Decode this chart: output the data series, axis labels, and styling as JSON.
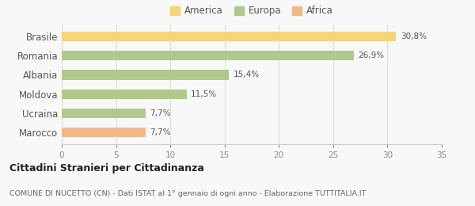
{
  "categories": [
    "Brasile",
    "Romania",
    "Albania",
    "Moldova",
    "Ucraina",
    "Marocco"
  ],
  "values": [
    30.8,
    26.9,
    15.4,
    11.5,
    7.7,
    7.7
  ],
  "labels": [
    "30,8%",
    "26,9%",
    "15,4%",
    "11,5%",
    "7,7%",
    "7,7%"
  ],
  "colors": [
    "#f5d57a",
    "#afc98a",
    "#afc98a",
    "#afc98a",
    "#afc98a",
    "#f0b98a"
  ],
  "legend": [
    {
      "label": "America",
      "color": "#f5d57a"
    },
    {
      "label": "Europa",
      "color": "#afc98a"
    },
    {
      "label": "Africa",
      "color": "#f0b98a"
    }
  ],
  "xlim": [
    0,
    35
  ],
  "xticks": [
    0,
    5,
    10,
    15,
    20,
    25,
    30,
    35
  ],
  "title": "Cittadini Stranieri per Cittadinanza",
  "subtitle": "COMUNE DI NUCETTO (CN) - Dati ISTAT al 1° gennaio di ogni anno - Elaborazione TUTTITALIA.IT",
  "background_color": "#f8f8f8",
  "bar_height": 0.5
}
